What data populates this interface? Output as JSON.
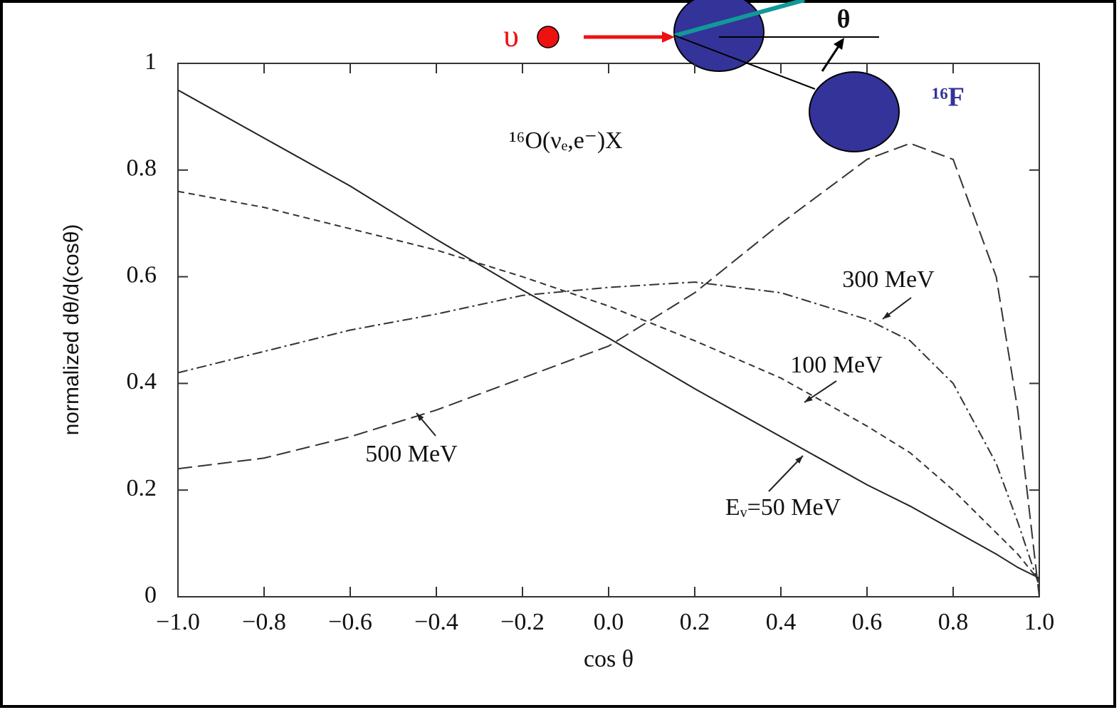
{
  "chart_data": {
    "type": "line",
    "title": "¹⁶O(νₑ,e⁻)X",
    "xlabel": "cos θ",
    "ylabel": "normalized dθ/d(cosθ)",
    "x": [
      -1.0,
      -0.8,
      -0.6,
      -0.4,
      -0.2,
      0.0,
      0.2,
      0.4,
      0.6,
      0.7,
      0.8,
      0.9,
      0.95,
      1.0
    ],
    "series": [
      {
        "name": "Eᵥ=50 MeV",
        "color": "#222222",
        "dash": "none",
        "values": [
          0.95,
          0.86,
          0.77,
          0.67,
          0.575,
          0.485,
          0.39,
          0.3,
          0.21,
          0.17,
          0.125,
          0.08,
          0.055,
          0.035
        ]
      },
      {
        "name": "100 MeV",
        "color": "#333333",
        "dash": "9 6",
        "values": [
          0.76,
          0.73,
          0.69,
          0.65,
          0.6,
          0.545,
          0.48,
          0.41,
          0.32,
          0.27,
          0.2,
          0.12,
          0.08,
          0.03
        ]
      },
      {
        "name": "300 MeV",
        "color": "#333333",
        "dash": "14 5 3 5",
        "values": [
          0.42,
          0.46,
          0.5,
          0.53,
          0.565,
          0.58,
          0.59,
          0.57,
          0.52,
          0.48,
          0.4,
          0.25,
          0.14,
          0.02
        ]
      },
      {
        "name": "500 MeV",
        "color": "#333333",
        "dash": "20 8",
        "values": [
          0.24,
          0.26,
          0.3,
          0.35,
          0.41,
          0.47,
          0.57,
          0.7,
          0.82,
          0.85,
          0.82,
          0.6,
          0.35,
          0.0
        ]
      }
    ],
    "xlim": [
      -1.0,
      1.0
    ],
    "xticks": [
      {
        "value": -1.0,
        "label": "−1.0"
      },
      {
        "value": -0.8,
        "label": "−0.8"
      },
      {
        "value": -0.6,
        "label": "−0.6"
      },
      {
        "value": -0.4,
        "label": "−0.4"
      },
      {
        "value": -0.2,
        "label": "−0.2"
      },
      {
        "value": 0.0,
        "label": "0.0"
      },
      {
        "value": 0.2,
        "label": "0.2"
      },
      {
        "value": 0.4,
        "label": "0.4"
      },
      {
        "value": 0.6,
        "label": "0.6"
      },
      {
        "value": 0.8,
        "label": "0.8"
      },
      {
        "value": 1.0,
        "label": "1.0"
      }
    ],
    "ylim": [
      0,
      1
    ],
    "yticks": [
      0,
      0.2,
      0.4,
      0.6,
      0.8,
      1
    ],
    "grid": false,
    "annotations": [
      "υ",
      "θ",
      "¹⁶F"
    ]
  }
}
